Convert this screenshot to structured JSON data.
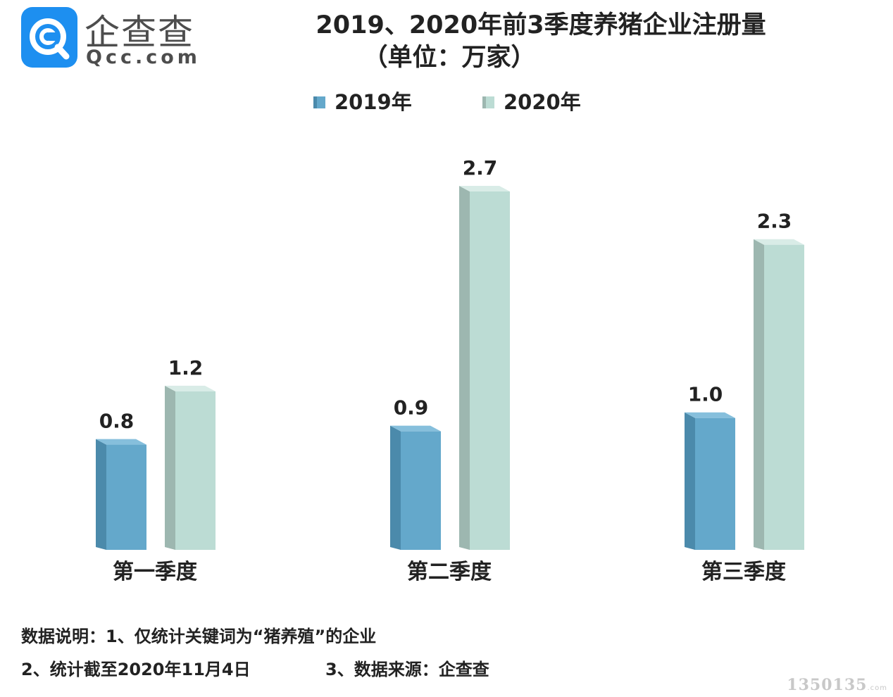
{
  "logo": {
    "name": "企查查",
    "sub": "Qcc.com"
  },
  "title": "2019、2020年前3季度养猪企业注册量",
  "subtitle": "（单位：万家）",
  "colors": {
    "series_2019_front": "#64a8cb",
    "series_2019_side": "#4b8aab",
    "series_2019_top": "#86bfdc",
    "series_2020_front": "#bcdcd4",
    "series_2020_side": "#9db7b0",
    "series_2020_top": "#d9ece7",
    "logo_blue": "#1d8ff0"
  },
  "chart_data": {
    "type": "bar",
    "categories": [
      "第一季度",
      "第二季度",
      "第三季度"
    ],
    "series": [
      {
        "name": "2019年",
        "values": [
          0.8,
          0.9,
          1.0
        ]
      },
      {
        "name": "2020年",
        "values": [
          1.2,
          2.7,
          2.3
        ]
      }
    ],
    "data_labels": [
      [
        "0.8",
        "0.9",
        "1.0"
      ],
      [
        "1.2",
        "2.7",
        "2.3"
      ]
    ],
    "legend_position": "top-center",
    "grid": false,
    "ylim": [
      0,
      2.7
    ]
  },
  "notes": {
    "line1": "数据说明：1、仅统计关键词为“猪养殖”的企业",
    "line2a": "2、统计截至2020年11月4日",
    "line2b": "3、数据来源：企查查"
  },
  "watermark": {
    "main": "1350135",
    "tail": ".com"
  }
}
